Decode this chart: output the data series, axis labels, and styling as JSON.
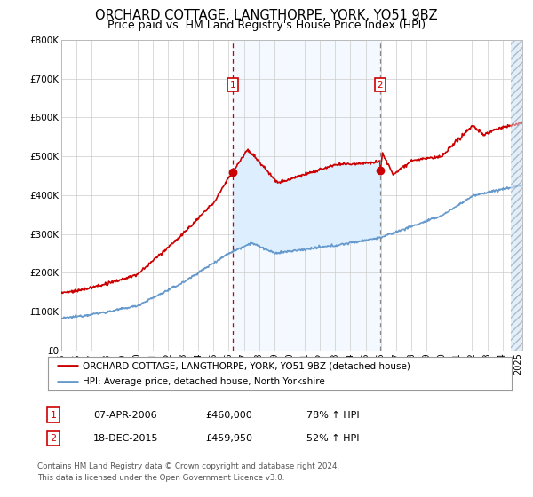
{
  "title": "ORCHARD COTTAGE, LANGTHORPE, YORK, YO51 9BZ",
  "subtitle": "Price paid vs. HM Land Registry's House Price Index (HPI)",
  "title_fontsize": 10.5,
  "subtitle_fontsize": 9,
  "ytick_labels": [
    "£0",
    "£100K",
    "£200K",
    "£300K",
    "£400K",
    "£500K",
    "£600K",
    "£700K",
    "£800K"
  ],
  "ytick_values": [
    0,
    100000,
    200000,
    300000,
    400000,
    500000,
    600000,
    700000,
    800000
  ],
  "ylim": [
    0,
    800000
  ],
  "xlim_start": 1995.0,
  "xlim_end": 2025.3,
  "legend_label_red": "ORCHARD COTTAGE, LANGTHORPE, YORK, YO51 9BZ (detached house)",
  "legend_label_blue": "HPI: Average price, detached house, North Yorkshire",
  "sale1_label": "1",
  "sale1_date": "07-APR-2006",
  "sale1_price_str": "£460,000",
  "sale1_hpi_str": "78% ↑ HPI",
  "sale1_year": 2006.27,
  "sale1_price": 460000,
  "sale2_label": "2",
  "sale2_date": "18-DEC-2015",
  "sale2_price_str": "£459,950",
  "sale2_hpi_str": "52% ↑ HPI",
  "sale2_year": 2015.96,
  "sale2_price": 459950,
  "footer_line1": "Contains HM Land Registry data © Crown copyright and database right 2024.",
  "footer_line2": "This data is licensed under the Open Government Licence v3.0.",
  "red_color": "#cc0000",
  "blue_color": "#6699cc",
  "fill_color": "#ddeeff",
  "hatch_facecolor": "#e4eef8",
  "box_edge_color": "#cc0000",
  "vline_color": "#cc0000",
  "background_color": "#ffffff",
  "grid_color": "#cccccc",
  "future_cutoff": 2024.5,
  "shade_start": 2006.27,
  "shade_end": 2015.96
}
